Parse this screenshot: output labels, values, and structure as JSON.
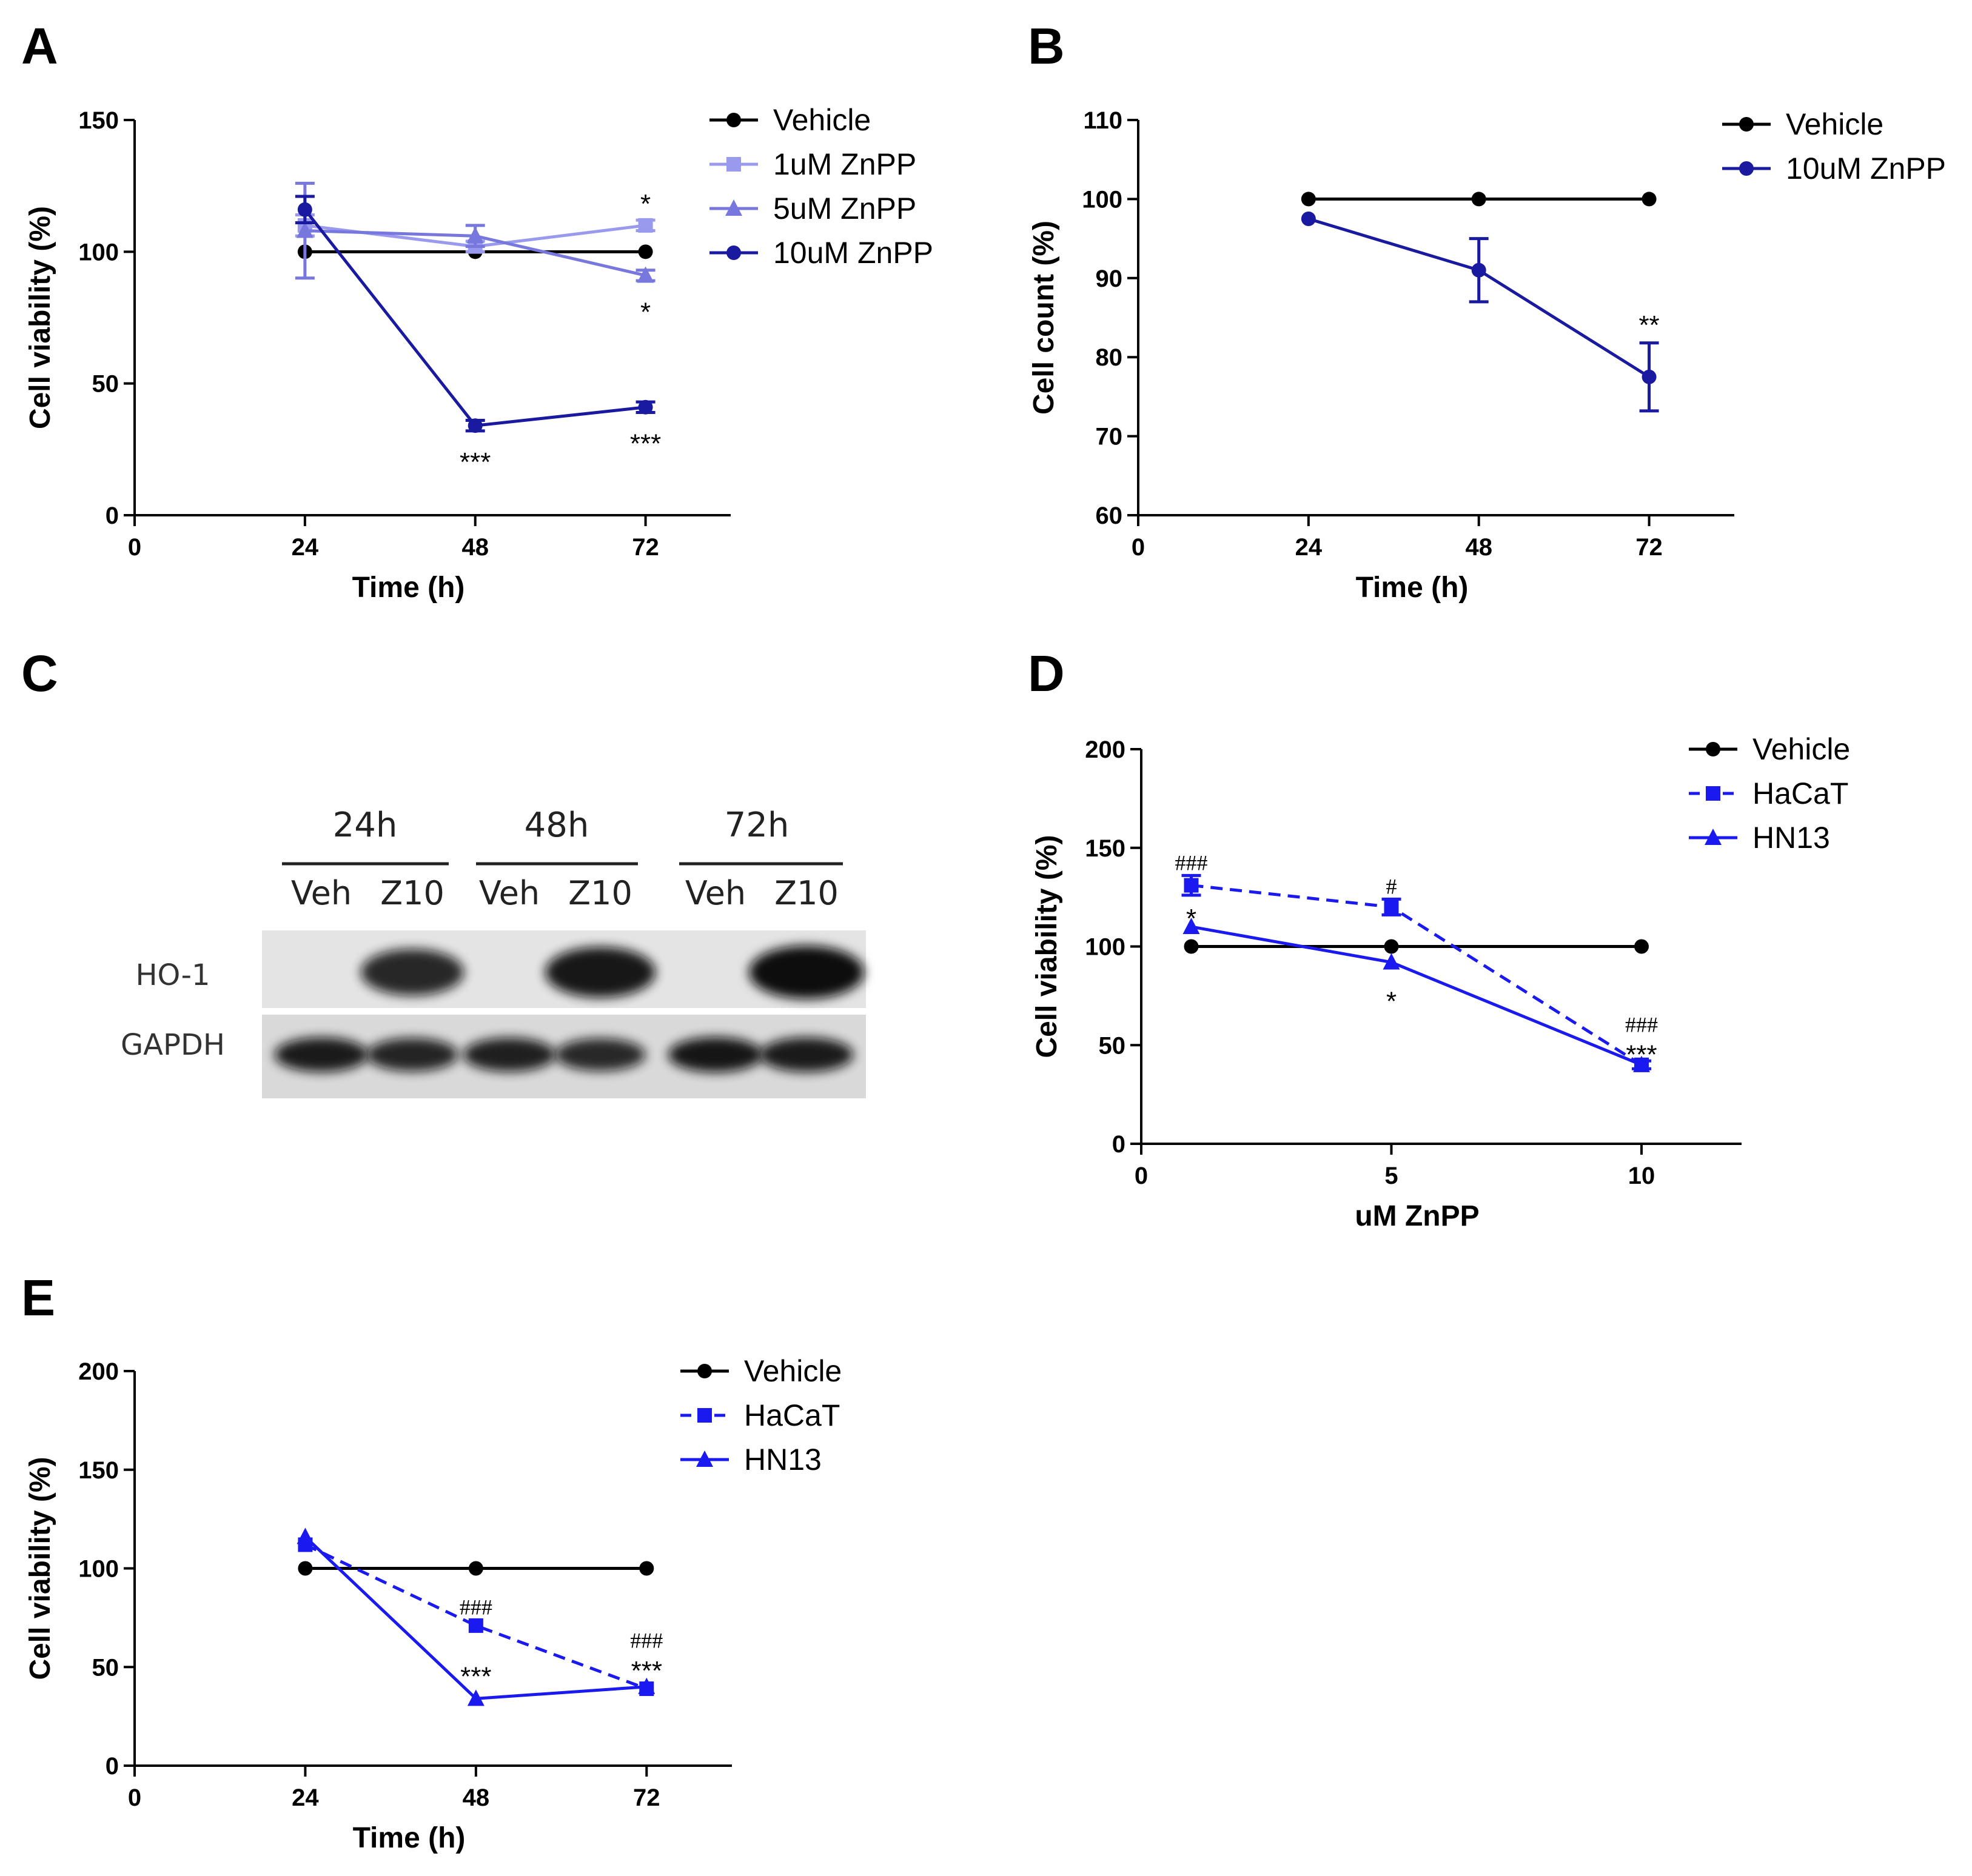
{
  "panels": {
    "A": "A",
    "B": "B",
    "C": "C",
    "D": "D",
    "E": "E"
  },
  "chart_data": [
    {
      "id": "A",
      "type": "line",
      "title": "",
      "xlabel": "Time (h)",
      "ylabel": "Cell viability (%)",
      "xlim": [
        0,
        84
      ],
      "ylim": [
        0,
        150
      ],
      "xticks": [
        0,
        24,
        48,
        72
      ],
      "yticks": [
        0,
        50,
        100,
        150
      ],
      "legend_position": "top-right",
      "series": [
        {
          "name": "Vehicle",
          "color": "#000000",
          "marker": "circle",
          "dashed": false,
          "x": [
            24,
            48,
            72
          ],
          "y": [
            100,
            100,
            100
          ]
        },
        {
          "name": "1uM ZnPP",
          "color": "#9999ee",
          "marker": "square",
          "dashed": false,
          "x": [
            24,
            48,
            72
          ],
          "y": [
            110,
            102,
            110
          ],
          "err": [
            4,
            2,
            2
          ]
        },
        {
          "name": "5uM ZnPP",
          "color": "#7777dd",
          "marker": "triangle",
          "dashed": false,
          "x": [
            24,
            48,
            72
          ],
          "y": [
            108,
            106,
            91
          ],
          "err": [
            18,
            4,
            2
          ]
        },
        {
          "name": "10uM ZnPP",
          "color": "#1a1aa0",
          "marker": "circle",
          "dashed": false,
          "x": [
            24,
            48,
            72
          ],
          "y": [
            116,
            34,
            41
          ],
          "err": [
            5,
            2,
            2
          ]
        }
      ],
      "annotations": [
        {
          "text": "*",
          "x": 72,
          "y": 118,
          "kind": "star"
        },
        {
          "text": "*",
          "x": 72,
          "y": 77,
          "kind": "star"
        },
        {
          "text": "***",
          "x": 48,
          "y": 20,
          "kind": "star"
        },
        {
          "text": "***",
          "x": 72,
          "y": 27,
          "kind": "star"
        }
      ]
    },
    {
      "id": "B",
      "type": "line",
      "title": "",
      "xlabel": "Time (h)",
      "ylabel": "Cell count (%)",
      "xlim": [
        0,
        84
      ],
      "ylim": [
        60,
        110
      ],
      "xticks": [
        0,
        24,
        48,
        72
      ],
      "yticks": [
        60,
        70,
        80,
        90,
        100,
        110
      ],
      "legend_position": "top-right",
      "series": [
        {
          "name": "Vehicle",
          "color": "#000000",
          "marker": "circle",
          "dashed": false,
          "x": [
            24,
            48,
            72
          ],
          "y": [
            100,
            100,
            100
          ]
        },
        {
          "name": "10uM ZnPP",
          "color": "#1a1aa0",
          "marker": "circle",
          "dashed": false,
          "x": [
            24,
            48,
            72
          ],
          "y": [
            97.5,
            91,
            77.5
          ],
          "err": [
            0,
            4,
            4.3
          ]
        }
      ],
      "annotations": [
        {
          "text": "**",
          "x": 72,
          "y": 84,
          "kind": "star"
        }
      ]
    },
    {
      "id": "D",
      "type": "line",
      "title": "",
      "xlabel": "uM ZnPP",
      "ylabel": "Cell viability (%)",
      "xlim": [
        0,
        12
      ],
      "ylim": [
        0,
        200
      ],
      "xticks": [
        0,
        5,
        10
      ],
      "yticks": [
        0,
        50,
        100,
        150,
        200
      ],
      "legend_position": "top-right",
      "series": [
        {
          "name": "Vehicle",
          "color": "#000000",
          "marker": "circle",
          "dashed": false,
          "x": [
            1,
            5,
            10
          ],
          "y": [
            100,
            100,
            100
          ]
        },
        {
          "name": "HaCaT",
          "color": "#1a1af0",
          "marker": "square",
          "dashed": true,
          "x": [
            1,
            5,
            10
          ],
          "y": [
            131,
            120,
            40
          ],
          "err": [
            5,
            4,
            2
          ]
        },
        {
          "name": "HN13",
          "color": "#1a1af0",
          "marker": "triangle",
          "dashed": false,
          "x": [
            1,
            5,
            10
          ],
          "y": [
            110,
            92,
            40
          ]
        }
      ],
      "annotations": [
        {
          "text": "###",
          "x": 1,
          "y": 143,
          "kind": "hash"
        },
        {
          "text": "*",
          "x": 1,
          "y": 114,
          "kind": "star"
        },
        {
          "text": "#",
          "x": 5,
          "y": 131,
          "kind": "hash"
        },
        {
          "text": "*",
          "x": 5,
          "y": 72,
          "kind": "star"
        },
        {
          "text": "###",
          "x": 10,
          "y": 61,
          "kind": "hash"
        },
        {
          "text": "***",
          "x": 10,
          "y": 45,
          "kind": "star"
        }
      ]
    },
    {
      "id": "E",
      "type": "line",
      "title": "",
      "xlabel": "Time (h)",
      "ylabel": "Cell viability (%)",
      "xlim": [
        0,
        84
      ],
      "ylim": [
        0,
        200
      ],
      "xticks": [
        0,
        24,
        48,
        72
      ],
      "yticks": [
        0,
        50,
        100,
        150,
        200
      ],
      "legend_position": "top-right",
      "series": [
        {
          "name": "Vehicle",
          "color": "#000000",
          "marker": "circle",
          "dashed": false,
          "x": [
            24,
            48,
            72
          ],
          "y": [
            100,
            100,
            100
          ]
        },
        {
          "name": "HaCaT",
          "color": "#1a1af0",
          "marker": "square",
          "dashed": true,
          "x": [
            24,
            48,
            72
          ],
          "y": [
            112,
            71,
            39
          ]
        },
        {
          "name": "HN13",
          "color": "#1a1af0",
          "marker": "triangle",
          "dashed": false,
          "x": [
            24,
            48,
            72
          ],
          "y": [
            116,
            34,
            40
          ]
        }
      ],
      "annotations": [
        {
          "text": "###",
          "x": 48,
          "y": 81,
          "kind": "hash"
        },
        {
          "text": "***",
          "x": 48,
          "y": 45,
          "kind": "star"
        },
        {
          "text": "###",
          "x": 72,
          "y": 64,
          "kind": "hash"
        },
        {
          "text": "***",
          "x": 72,
          "y": 48,
          "kind": "star"
        }
      ]
    }
  ],
  "blot": {
    "timepoints": [
      "24h",
      "48h",
      "72h"
    ],
    "lanes": [
      "Veh",
      "Z10",
      "Veh",
      "Z10",
      "Veh",
      "Z10"
    ],
    "rows": [
      "HO-1",
      "GAPDH"
    ],
    "ho1_intensity": [
      0,
      0.75,
      0,
      0.9,
      0,
      1.0
    ],
    "gapdh_intensity": [
      0.85,
      0.75,
      0.8,
      0.7,
      0.9,
      0.85
    ]
  }
}
